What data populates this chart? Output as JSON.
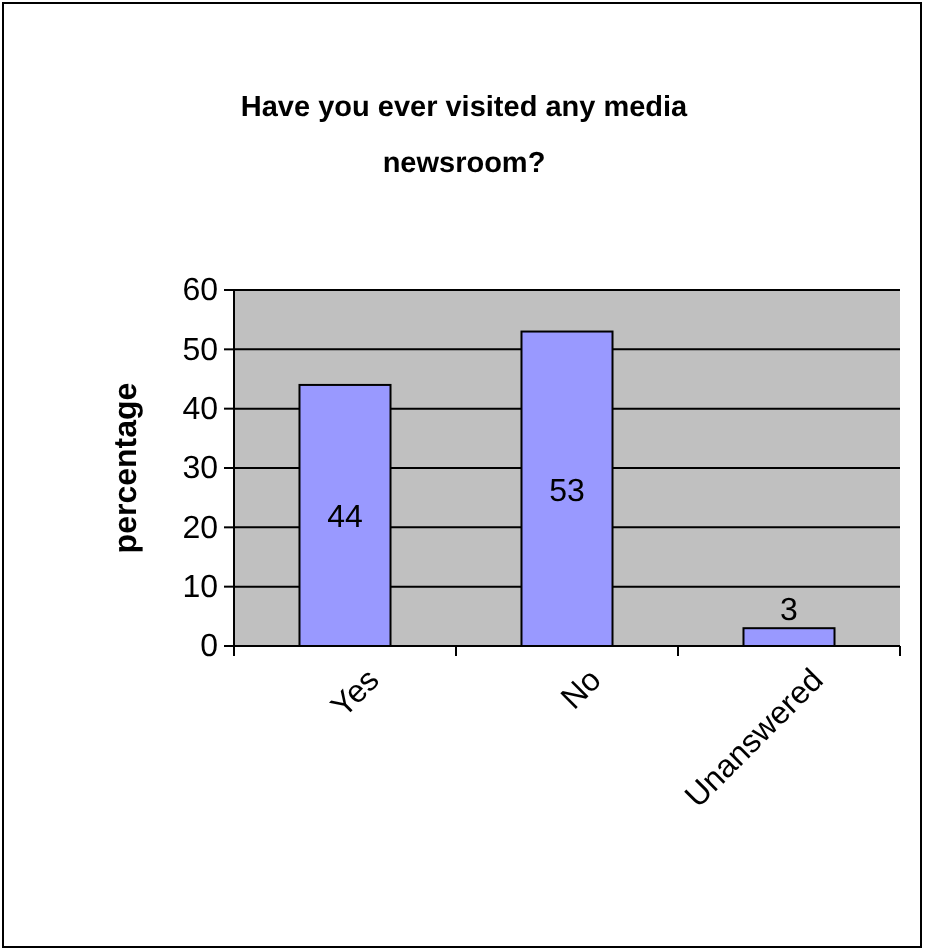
{
  "chart_data": {
    "type": "bar",
    "title": "Have you ever visited any media newsroom?",
    "ylabel": "percentage",
    "categories": [
      "Yes",
      "No",
      "Unanswered"
    ],
    "values": [
      44,
      53,
      3
    ],
    "color": "#9999ff",
    "ylim": [
      0,
      60
    ],
    "yticks": [
      0,
      10,
      20,
      30,
      40,
      50,
      60
    ],
    "grid": "y",
    "data_labels": true
  }
}
